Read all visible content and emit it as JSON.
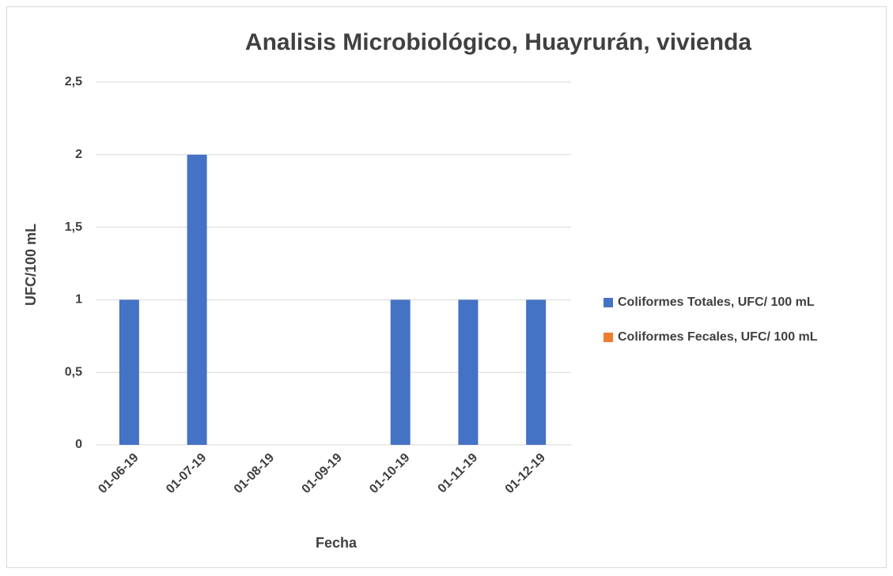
{
  "chart_data": {
    "type": "bar",
    "title": "Analisis Microbiológico, Huayrurán, vivienda",
    "x_label": "Fecha",
    "y_label": "UFC/100 mL",
    "categories": [
      "01-06-19",
      "01-07-19",
      "01-08-19",
      "01-09-19",
      "01-10-19",
      "01-11-19",
      "01-12-19"
    ],
    "series": [
      {
        "name": "Coliformes Totales, UFC/ 100 mL",
        "color": "#4472c4",
        "values": [
          1,
          2,
          0,
          0,
          1,
          1,
          1
        ]
      },
      {
        "name": "Coliformes Fecales, UFC/ 100 mL",
        "color": "#ed7d31",
        "values": [
          0,
          0,
          0,
          0,
          0,
          0,
          0
        ]
      }
    ],
    "ylim": [
      0,
      2.5
    ],
    "yticks": [
      0,
      {
        "value": 0.5,
        "label": "0,5"
      },
      1,
      {
        "value": 1.5,
        "label": "1,5"
      },
      2,
      {
        "value": 2.5,
        "label": "2,5"
      }
    ],
    "grid": true,
    "legend": "right"
  }
}
